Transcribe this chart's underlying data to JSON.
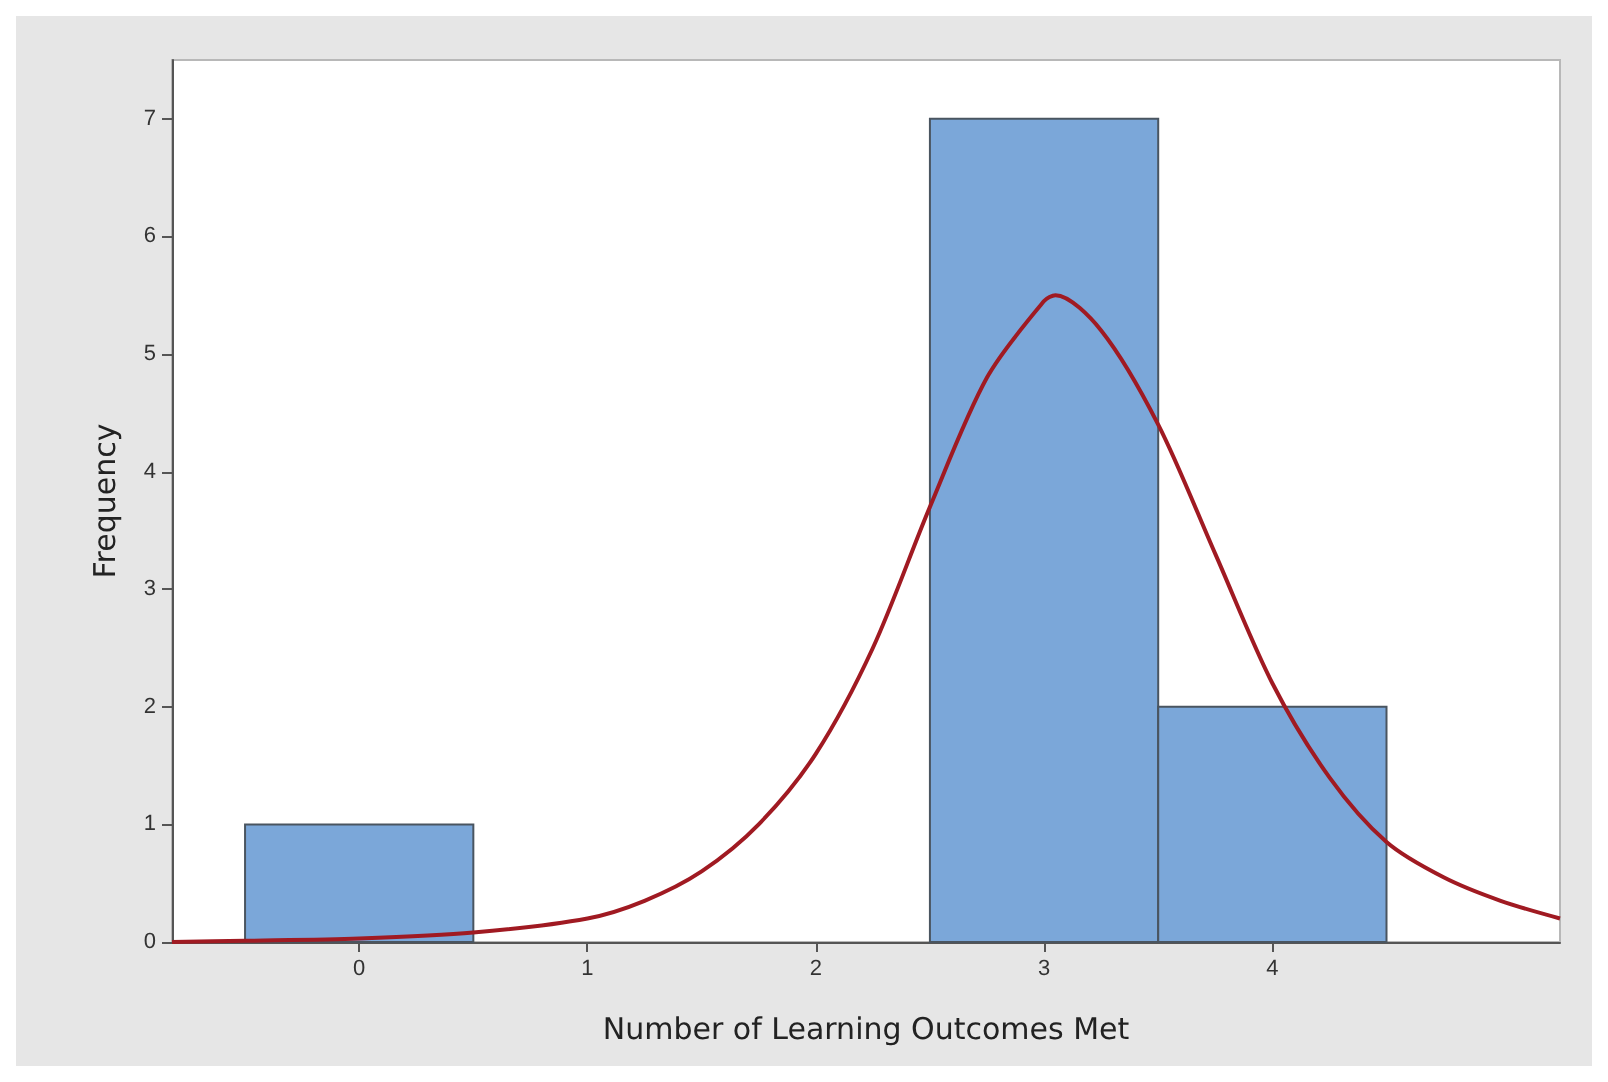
{
  "chart_data": {
    "type": "histogram",
    "xlabel": "Number of Learning Outcomes Met",
    "ylabel": "Frequency",
    "bins": [
      -0.5,
      0.5,
      1.5,
      2.5,
      3.5,
      4.5
    ],
    "values": [
      1,
      0,
      0,
      7,
      2
    ],
    "color": "#7ba7d9",
    "xlim": [
      -0.82,
      5.26
    ],
    "ylim": [
      0,
      7.5
    ],
    "xticks": [
      0,
      1,
      2,
      3,
      4
    ],
    "yticks": [
      0,
      1,
      2,
      3,
      4,
      5,
      6,
      7
    ],
    "grid": false,
    "series": [
      {
        "type": "line",
        "color": "#a01a22",
        "marker": "none",
        "line_style": "solid",
        "x": [
          -0.82,
          -0.5,
          0,
          0.5,
          1,
          1.25,
          1.5,
          1.75,
          2,
          2.25,
          2.5,
          2.75,
          3,
          3.05,
          3.25,
          3.5,
          3.75,
          4,
          4.25,
          4.5,
          4.75,
          5,
          5.26
        ],
        "values": [
          0,
          0.01,
          0.03,
          0.08,
          0.2,
          0.35,
          0.6,
          1.0,
          1.6,
          2.5,
          3.7,
          4.8,
          5.45,
          5.5,
          5.2,
          4.4,
          3.3,
          2.2,
          1.4,
          0.85,
          0.55,
          0.35,
          0.2
        ]
      }
    ]
  }
}
